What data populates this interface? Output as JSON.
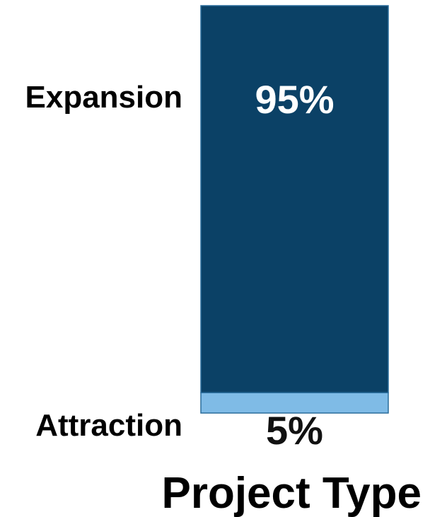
{
  "chart_data": {
    "type": "bar",
    "stacked": true,
    "orientation": "vertical",
    "xlabel": "Project Type",
    "ylim": [
      0,
      100
    ],
    "unit": "%",
    "grid": false,
    "segments": [
      {
        "name": "Attraction",
        "value": 5,
        "label": "5%",
        "color": "#7fbbe6",
        "label_color": "#111111"
      },
      {
        "name": "Expansion",
        "value": 95,
        "label": "95%",
        "color": "#0b4166",
        "label_color": "#ffffff"
      }
    ]
  }
}
